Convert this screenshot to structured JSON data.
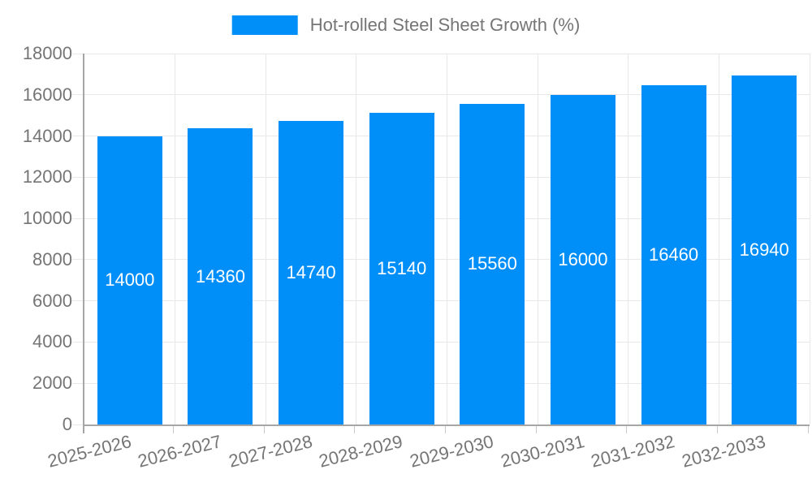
{
  "chart_data": {
    "type": "bar",
    "title": "",
    "legend_label": "Hot-rolled Steel Sheet Growth (%)",
    "legend_position": "top",
    "categories": [
      "2025-2026",
      "2026-2027",
      "2027-2028",
      "2028-2029",
      "2029-2030",
      "2030-2031",
      "2031-2032",
      "2032-2033"
    ],
    "values": [
      14000,
      14360,
      14740,
      15140,
      15560,
      16000,
      16460,
      16940
    ],
    "value_labels": [
      "14000",
      "14360",
      "14740",
      "15140",
      "15560",
      "16000",
      "16460",
      "16940"
    ],
    "xlabel": "",
    "ylabel": "",
    "ylim": [
      0,
      18000
    ],
    "ytick_step": 2000,
    "grid": true,
    "colors": {
      "bar": "#008FF9",
      "value_label": "#FFFFFF",
      "axis_text": "#757575",
      "grid_line": "#E8E8E8",
      "axis_line": "#A6A6A6"
    }
  }
}
